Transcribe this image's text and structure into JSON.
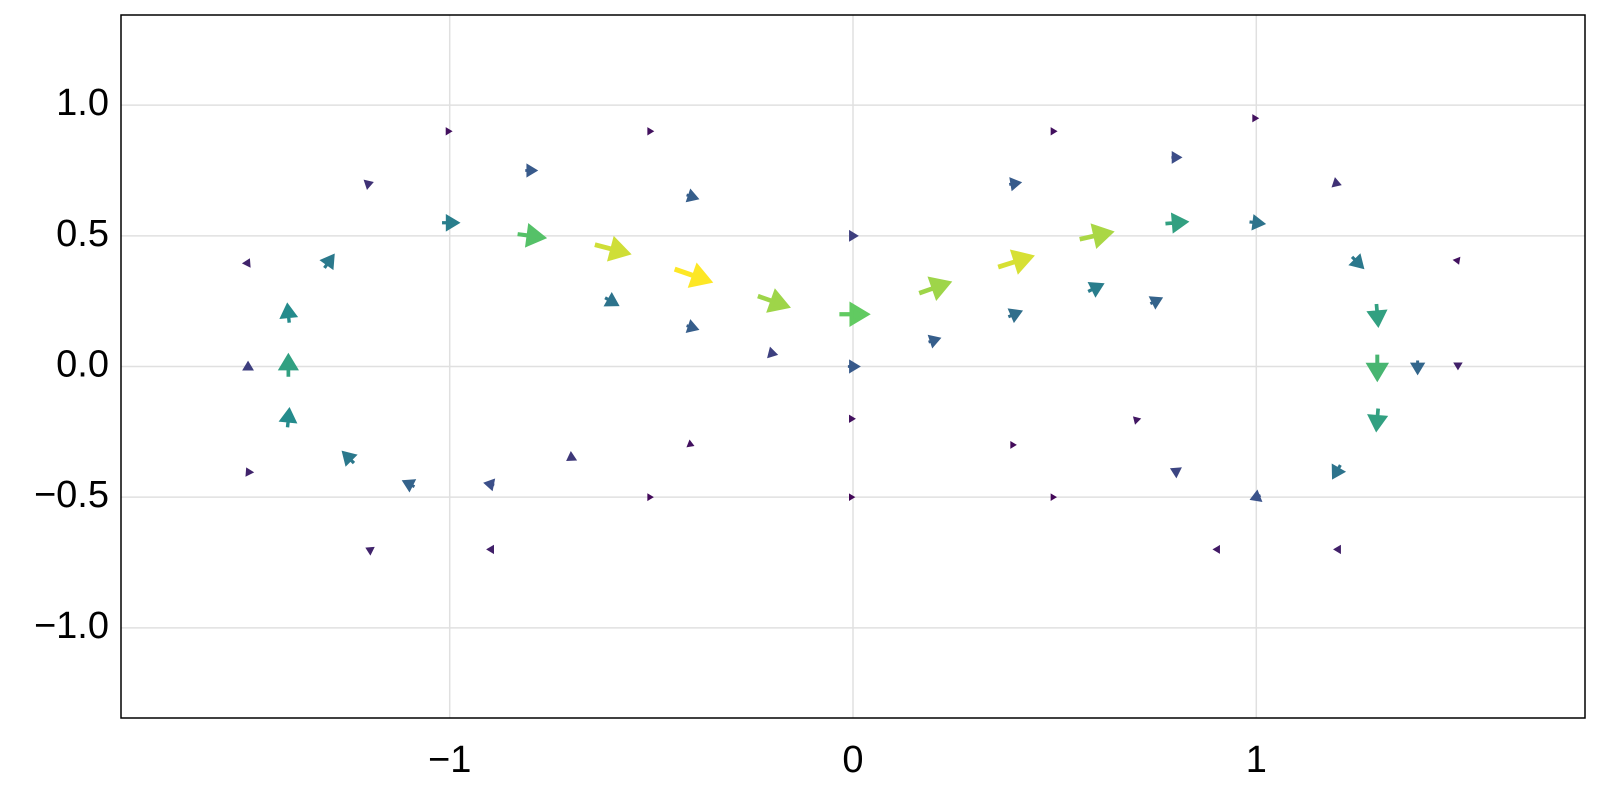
{
  "chart_data": {
    "type": "quiver",
    "colormap": "viridis",
    "grid": true,
    "xlim": [
      -1.815,
      1.815
    ],
    "ylim": [
      -1.345,
      1.345
    ],
    "xticks": [
      {
        "value": -1,
        "label": "−1"
      },
      0,
      1
    ],
    "yticks": [
      {
        "value": -1,
        "label": "−1.0"
      },
      {
        "value": -0.5,
        "label": "−0.5"
      },
      {
        "value": 0,
        "label": "0.0"
      },
      {
        "value": 0.5,
        "label": "0.5"
      },
      {
        "value": 1,
        "label": "1.0"
      }
    ],
    "x": [
      -1.0,
      -0.8,
      -0.6,
      -0.4,
      -0.2,
      0.0,
      0.2,
      0.4,
      0.6,
      0.8,
      1.0,
      -0.8,
      -0.4,
      0,
      0.4,
      0.8,
      -1.2,
      1.2,
      -1,
      -0.5,
      0.5,
      1,
      -0.6,
      -0.4,
      0.2,
      0.4,
      0,
      -0.2,
      0.6,
      0,
      0,
      -0.4,
      0.4,
      -0.5,
      0.5,
      -1.4,
      -1.4,
      -1.4,
      -1.3,
      -1.25,
      -1.1,
      -0.9,
      -0.7,
      -1.2,
      -0.9,
      -1.5,
      -1.5,
      -1.5,
      1.3,
      1.3,
      1.3,
      1.25,
      1.2,
      1.0,
      0.8,
      0.7,
      1.4,
      1.5,
      1.2,
      0.9,
      1.5,
      0.75
    ],
    "y": [
      0.55,
      0.5,
      0.45,
      0.35,
      0.25,
      0.2,
      0.3,
      0.4,
      0.5,
      0.55,
      0.55,
      0.75,
      0.65,
      0.5,
      0.7,
      0.8,
      0.7,
      0.7,
      0.9,
      0.9,
      0.9,
      0.95,
      0.25,
      0.15,
      0.1,
      0.2,
      0.0,
      0.05,
      0.3,
      -0.2,
      -0.5,
      -0.3,
      -0.3,
      -0.5,
      -0.5,
      0.2,
      0,
      -0.2,
      0.4,
      -0.35,
      -0.45,
      -0.45,
      -0.35,
      -0.7,
      -0.7,
      0,
      0.4,
      -0.4,
      0.2,
      0,
      -0.2,
      0.4,
      -0.4,
      -0.5,
      -0.4,
      -0.2,
      0,
      0,
      -0.7,
      -0.7,
      0.4,
      0.25
    ],
    "u": [
      0.45,
      0.75,
      0.95,
      1.0,
      0.85,
      0.8,
      0.85,
      0.95,
      0.9,
      0.6,
      0.4,
      0.3,
      0.3,
      0.2,
      0.3,
      0.25,
      0.15,
      0.15,
      0.05,
      0.05,
      0.05,
      0.05,
      0.35,
      0.3,
      0.3,
      0.35,
      0.3,
      0.2,
      0.4,
      0.05,
      0.02,
      0.05,
      0.03,
      0.03,
      0.02,
      -0.05,
      0,
      0.05,
      0.25,
      -0.3,
      -0.3,
      -0.25,
      -0.15,
      -0.1,
      -0.1,
      0,
      0.05,
      -0.05,
      0.05,
      0,
      -0.05,
      0.3,
      -0.2,
      -0.25,
      -0.2,
      -0.05,
      0,
      0,
      -0.1,
      -0.08,
      0.02,
      0.3
    ],
    "v": [
      0.0,
      -0.1,
      -0.25,
      -0.35,
      -0.3,
      0.0,
      0.3,
      0.3,
      0.2,
      0.05,
      -0.05,
      0,
      -0.1,
      0,
      0.05,
      0,
      0.05,
      -0.05,
      0,
      0,
      0,
      0,
      -0.2,
      -0.1,
      0.1,
      0.15,
      0,
      -0.05,
      0.2,
      0,
      0,
      -0.02,
      0,
      0,
      0,
      0.5,
      0.6,
      0.5,
      0.35,
      0.3,
      0.15,
      0.05,
      -0.1,
      0.05,
      0,
      0.2,
      0.1,
      0.1,
      -0.6,
      -0.7,
      -0.6,
      -0.3,
      -0.35,
      -0.1,
      0.1,
      0.05,
      -0.35,
      -0.1,
      0,
      0,
      -0.05,
      0.15
    ]
  }
}
